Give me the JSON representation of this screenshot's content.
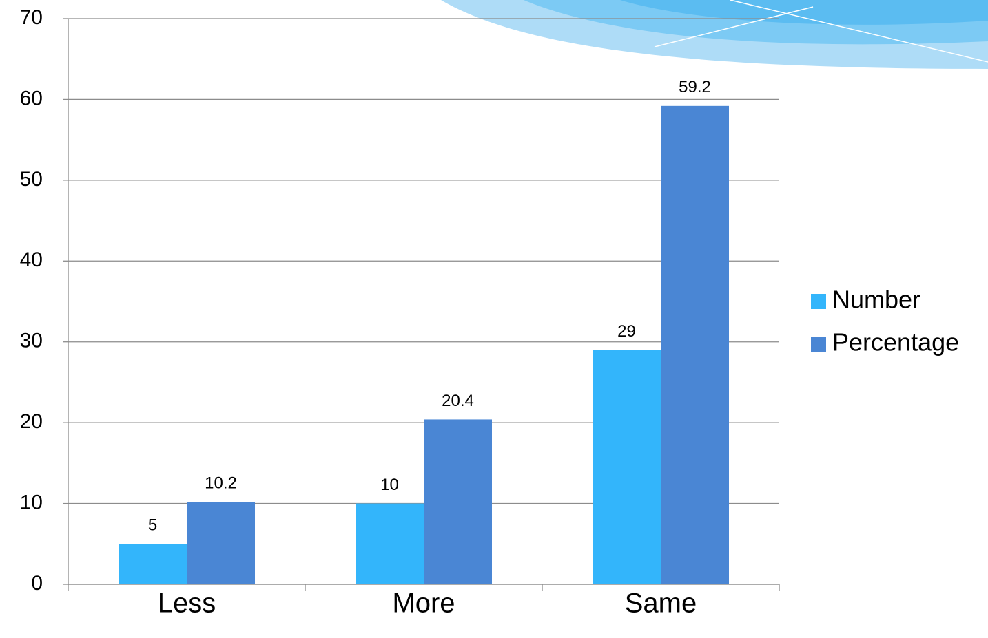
{
  "chart_data": {
    "type": "bar",
    "categories": [
      "Less",
      "More",
      "Same"
    ],
    "series": [
      {
        "name": "Number",
        "color": "#33b5fb",
        "values": [
          5,
          10,
          29
        ]
      },
      {
        "name": "Percentage",
        "color": "#4a86d4",
        "values": [
          10.2,
          20.4,
          59.2
        ]
      }
    ],
    "ylim": [
      0,
      70
    ],
    "yticks": [
      0,
      10,
      20,
      30,
      40,
      50,
      60,
      70
    ],
    "grid": true,
    "legend": "right"
  }
}
